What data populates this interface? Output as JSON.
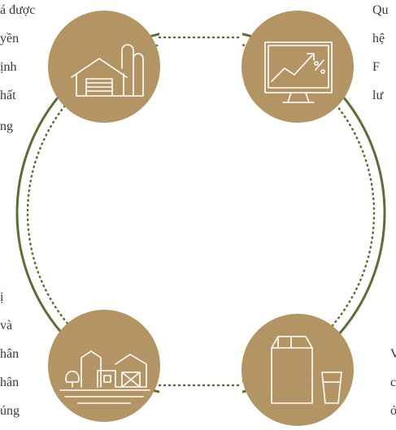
{
  "top_left_text": [
    "á được",
    "yền",
    "ịnh",
    "hất",
    "ng"
  ],
  "top_right_text": [
    "Qu",
    "hệ",
    "F",
    "lư"
  ],
  "bottom_left_text": [
    "ị",
    "và",
    "hân",
    "hân",
    "úng"
  ],
  "bottom_right_text": [
    "V",
    "c",
    "ở"
  ]
}
